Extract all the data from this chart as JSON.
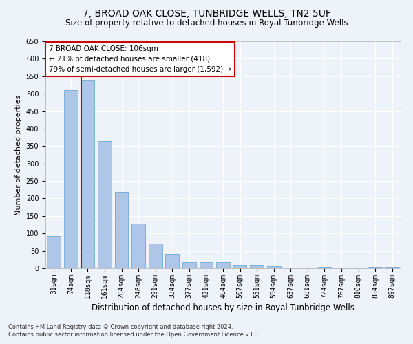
{
  "title": "7, BROAD OAK CLOSE, TUNBRIDGE WELLS, TN2 5UF",
  "subtitle": "Size of property relative to detached houses in Royal Tunbridge Wells",
  "xlabel": "Distribution of detached houses by size in Royal Tunbridge Wells",
  "ylabel": "Number of detached properties",
  "footer1": "Contains HM Land Registry data © Crown copyright and database right 2024.",
  "footer2": "Contains public sector information licensed under the Open Government Licence v3.0.",
  "annotation_title": "7 BROAD OAK CLOSE: 106sqm",
  "annotation_line2": "← 21% of detached houses are smaller (418)",
  "annotation_line3": "79% of semi-detached houses are larger (1,592) →",
  "bar_color": "#aec6e8",
  "bar_edge_color": "#5a9fd4",
  "marker_color": "#cc0000",
  "bins": [
    "31sqm",
    "74sqm",
    "118sqm",
    "161sqm",
    "204sqm",
    "248sqm",
    "291sqm",
    "334sqm",
    "377sqm",
    "421sqm",
    "464sqm",
    "507sqm",
    "551sqm",
    "594sqm",
    "637sqm",
    "681sqm",
    "724sqm",
    "767sqm",
    "810sqm",
    "854sqm",
    "897sqm"
  ],
  "values": [
    93,
    510,
    537,
    365,
    218,
    128,
    70,
    42,
    17,
    17,
    18,
    10,
    10,
    5,
    1,
    1,
    4,
    1,
    0,
    4,
    4
  ],
  "marker_bin_index": 2,
  "ylim": [
    0,
    650
  ],
  "yticks": [
    0,
    50,
    100,
    150,
    200,
    250,
    300,
    350,
    400,
    450,
    500,
    550,
    600,
    650
  ],
  "background_color": "#eef2f9",
  "grid_color": "#ffffff",
  "title_fontsize": 10,
  "subtitle_fontsize": 8.5,
  "ylabel_fontsize": 8,
  "xlabel_fontsize": 8.5,
  "tick_fontsize": 7,
  "footer_fontsize": 6,
  "annotation_fontsize": 7.5
}
